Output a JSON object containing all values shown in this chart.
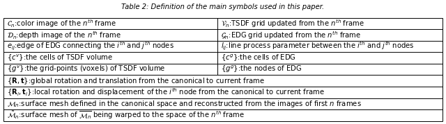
{
  "title": "Table 2: Definition of the main symbols used in this paper.",
  "rows": [
    {
      "cells": [
        "$\\mathcal{C}_n$:color image of the $n^{th}$ frame",
        "$\\mathcal{V}_n$:TSDF grid updated from the $n^{th}$ frame"
      ],
      "span": false
    },
    {
      "cells": [
        "$\\mathcal{D}_n$:depth image of the $n^{th}$ frame",
        "$\\mathcal{G}_n$:EDG grid updated from the $n^{th}$ frame"
      ],
      "span": false
    },
    {
      "cells": [
        "$e_{ij}$:edge of EDG connecting the $i^{th}$ and $j^{th}$ nodes",
        "$l_{ij}$:line process parameter between the $i^{th}$ and $j^{th}$ nodes"
      ],
      "span": false
    },
    {
      "cells": [
        "$\\{c^v\\}$:the cells of TSDF volume",
        "$\\{c^g\\}$:the cells of EDG"
      ],
      "span": false
    },
    {
      "cells": [
        "$\\{g^v\\}$:the grid-points (voxels) of TSDF volume",
        "$\\{g^g\\}$:the nodes of EDG"
      ],
      "span": false
    },
    {
      "cells": [
        "$\\{\\mathbf{R}, \\mathbf{t}\\}$:global rotation and translation from the canonical to current frame"
      ],
      "span": true
    },
    {
      "cells": [
        "$\\{\\mathbf{R}_i, \\mathbf{t}_i\\}$:local rotation and displacement of the $i^{th}$ node from the canonical to current frame"
      ],
      "span": true
    },
    {
      "cells": [
        "$\\mathcal{M}_n$:surface mesh defined in the canonical space and reconstructed from the images of first $n$ frames"
      ],
      "span": true
    },
    {
      "cells": [
        "$\\tilde{\\mathcal{M}}_n$:surface mesh of $\\overline{\\mathcal{M}_n}$ being warped to the space of the $n^{th}$ frame"
      ],
      "span": true
    }
  ],
  "col_split": 0.488,
  "bg_color": "#ffffff",
  "border_color": "#000000",
  "font_size": 7.2,
  "title_font_size": 7.2,
  "fig_width": 6.4,
  "fig_height": 1.79,
  "dpi": 100
}
